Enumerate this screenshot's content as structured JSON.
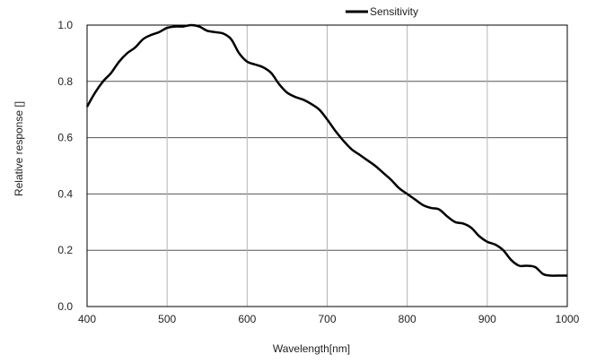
{
  "chart_data": {
    "type": "line",
    "xlabel": "Wavelength[nm]",
    "ylabel": "Relative response []",
    "xlim": [
      400,
      1000
    ],
    "ylim": [
      0,
      1.0
    ],
    "xticks": [
      "400",
      "500",
      "600",
      "700",
      "800",
      "900",
      "1000"
    ],
    "yticks": [
      "0.0",
      "0.2",
      "0.4",
      "0.6",
      "0.8",
      "1.0"
    ],
    "grid": true,
    "legend_position": "top-right",
    "series": [
      {
        "name": "Sensitivity",
        "color": "#000000",
        "x": [
          400,
          410,
          420,
          430,
          440,
          450,
          460,
          470,
          480,
          490,
          500,
          510,
          520,
          530,
          540,
          550,
          560,
          570,
          580,
          590,
          600,
          610,
          620,
          630,
          640,
          650,
          660,
          670,
          680,
          690,
          700,
          710,
          720,
          730,
          740,
          750,
          760,
          770,
          780,
          790,
          800,
          810,
          820,
          830,
          840,
          850,
          860,
          870,
          880,
          890,
          900,
          910,
          920,
          930,
          940,
          950,
          960,
          970,
          980,
          990,
          1000
        ],
        "y": [
          0.71,
          0.76,
          0.8,
          0.83,
          0.87,
          0.9,
          0.92,
          0.95,
          0.965,
          0.975,
          0.99,
          0.995,
          0.995,
          1.0,
          0.995,
          0.98,
          0.975,
          0.97,
          0.95,
          0.9,
          0.87,
          0.86,
          0.85,
          0.83,
          0.79,
          0.76,
          0.745,
          0.735,
          0.72,
          0.7,
          0.665,
          0.625,
          0.59,
          0.56,
          0.54,
          0.52,
          0.5,
          0.475,
          0.45,
          0.42,
          0.4,
          0.38,
          0.36,
          0.35,
          0.345,
          0.32,
          0.3,
          0.295,
          0.28,
          0.25,
          0.23,
          0.22,
          0.2,
          0.165,
          0.145,
          0.145,
          0.14,
          0.115,
          0.11,
          0.11,
          0.11
        ]
      }
    ]
  }
}
